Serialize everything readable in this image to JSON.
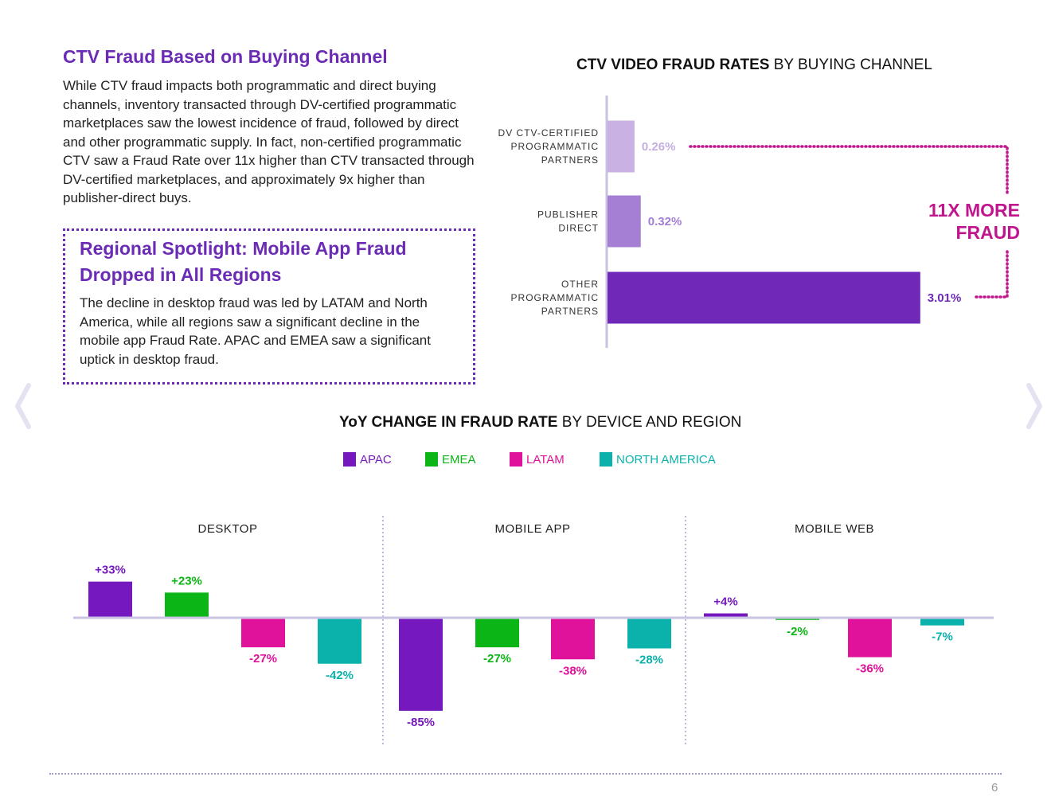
{
  "intro": {
    "title": "CTV Fraud Based on Buying Channel",
    "body": "While CTV fraud impacts both programmatic and direct buying channels, inventory transacted through DV-certified programmatic marketplaces saw the lowest incidence of fraud, followed by direct and other programmatic supply. In fact, non-certified programmatic CTV saw a Fraud Rate over 11x higher than CTV transacted through DV-certified marketplaces, and approximately 9x higher than publisher-direct buys."
  },
  "spotlight": {
    "title": "Regional Spotlight: Mobile App Fraud Dropped in All Regions",
    "body": "The decline in desktop fraud was led by LATAM and North America, while all regions saw a significant decline in the mobile app Fraud Rate. APAC and EMEA saw a significant uptick in desktop fraud."
  },
  "colors": {
    "brand_purple": "#6b2bb5",
    "apac": "#7518be",
    "emea": "#0bb515",
    "latam": "#e0119a",
    "north_america": "#0bb2ab",
    "callout": "#c0168d",
    "axis": "#c9c1e0"
  },
  "page_number": "6",
  "nav": {
    "prev_icon": "chevron-left-icon",
    "next_icon": "chevron-right-icon"
  },
  "chart_data": [
    {
      "type": "bar",
      "orientation": "horizontal",
      "title_bold": "CTV VIDEO FRAUD RATES",
      "title_rest": " BY BUYING CHANNEL",
      "categories": [
        [
          "DV CTV-CERTIFIED",
          "PROGRAMMATIC",
          "PARTNERS"
        ],
        [
          "PUBLISHER",
          "DIRECT"
        ],
        [
          "OTHER",
          "PROGRAMMATIC",
          "PARTNERS"
        ]
      ],
      "values": [
        0.26,
        0.32,
        3.01
      ],
      "value_labels": [
        "0.26%",
        "0.32%",
        "3.01%"
      ],
      "bar_colors": [
        "#c9b1e3",
        "#a47fd4",
        "#6f28b8"
      ],
      "label_colors": [
        "#c3aee0",
        "#a47fd4",
        "#6f28b8"
      ],
      "xlim": [
        0,
        3.85
      ],
      "annotation": [
        "11X MORE",
        "FRAUD"
      ]
    },
    {
      "type": "bar",
      "title_bold": "YoY CHANGE IN FRAUD RATE",
      "title_rest": " BY DEVICE AND REGION",
      "legend": [
        "APAC",
        "EMEA",
        "LATAM",
        "NORTH AMERICA"
      ],
      "panels": [
        "DESKTOP",
        "MOBILE APP",
        "MOBILE WEB"
      ],
      "series": [
        {
          "name": "APAC",
          "values": [
            33,
            -85,
            4
          ],
          "labels": [
            "+33%",
            "-85%",
            "+4%"
          ]
        },
        {
          "name": "EMEA",
          "values": [
            23,
            -27,
            -2
          ],
          "labels": [
            "+23%",
            "-27%",
            "-2%"
          ]
        },
        {
          "name": "LATAM",
          "values": [
            -27,
            -38,
            -36
          ],
          "labels": [
            "-27%",
            "-38%",
            "-36%"
          ]
        },
        {
          "name": "NORTH AMERICA",
          "values": [
            -42,
            -28,
            -7
          ],
          "labels": [
            "-42%",
            "-28%",
            "-7%"
          ]
        }
      ],
      "ylim": [
        -85,
        33
      ]
    }
  ]
}
